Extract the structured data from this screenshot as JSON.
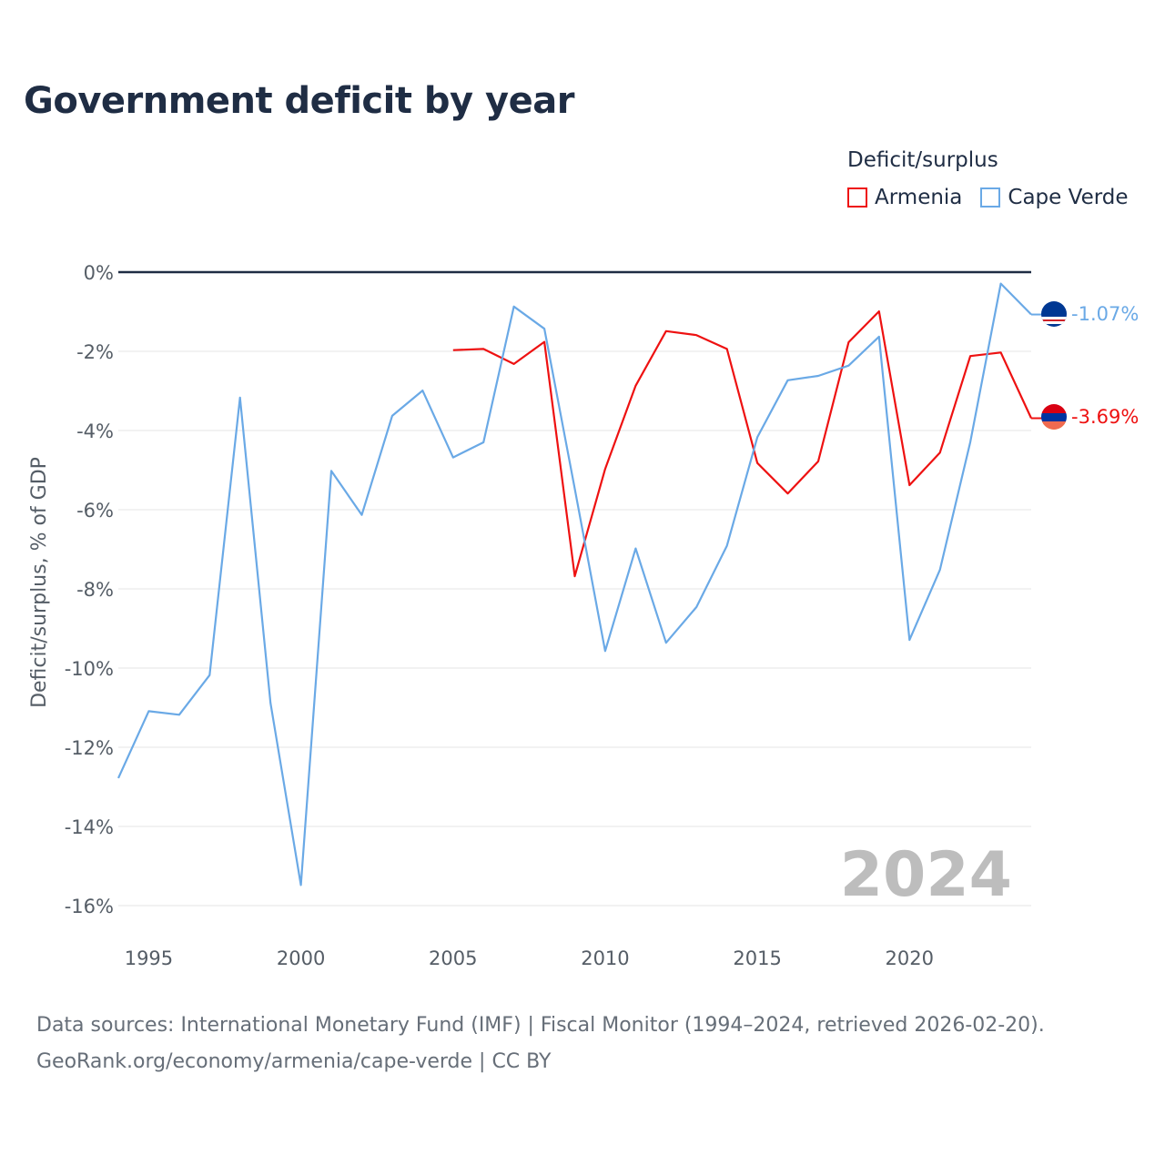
{
  "title": "Government deficit by year",
  "legend_title": "Deficit/surplus",
  "footer": {
    "line1": "Data sources: International Monetary Fund (IMF) | Fiscal Monitor (1994–2024, retrieved 2026-02-20).",
    "line2": "GeoRank.org/economy/armenia/cape-verde | CC BY"
  },
  "colors": {
    "armenia": "#ee1111",
    "cape_verde": "#6aa9e6",
    "zero_line": "#1f2d44",
    "grid": "#e6e6e6"
  },
  "chart_data": {
    "type": "line",
    "title": "Government deficit by year",
    "xlabel": "",
    "ylabel": "Deficit/surplus, % of GDP",
    "xlim": [
      1994,
      2024
    ],
    "ylim": [
      -16,
      0
    ],
    "x_ticks": [
      1995,
      2000,
      2005,
      2010,
      2015,
      2020
    ],
    "y_ticks": [
      0,
      -2,
      -4,
      -6,
      -8,
      -10,
      -12,
      -14,
      -16
    ],
    "y_tick_labels": [
      "0%",
      "-2%",
      "-4%",
      "-6%",
      "-8%",
      "-10%",
      "-12%",
      "-14%",
      "-16%"
    ],
    "watermark": "2024",
    "series": [
      {
        "name": "Armenia",
        "color": "#ee1111",
        "end_label": "-3.69%",
        "points": [
          [
            2005,
            -1.97
          ],
          [
            2006,
            -1.94
          ],
          [
            2007,
            -2.32
          ],
          [
            2008,
            -1.76
          ],
          [
            2009,
            -7.68
          ],
          [
            2010,
            -4.97
          ],
          [
            2011,
            -2.87
          ],
          [
            2012,
            -1.49
          ],
          [
            2013,
            -1.59
          ],
          [
            2014,
            -1.94
          ],
          [
            2015,
            -4.82
          ],
          [
            2016,
            -5.59
          ],
          [
            2017,
            -4.78
          ],
          [
            2018,
            -1.77
          ],
          [
            2019,
            -0.99
          ],
          [
            2020,
            -5.38
          ],
          [
            2021,
            -4.56
          ],
          [
            2022,
            -2.12
          ],
          [
            2023,
            -2.03
          ],
          [
            2024,
            -3.69
          ]
        ]
      },
      {
        "name": "Cape Verde",
        "color": "#6aa9e6",
        "end_label": "-1.07%",
        "points": [
          [
            1994,
            -12.78
          ],
          [
            1995,
            -11.09
          ],
          [
            1996,
            -11.18
          ],
          [
            1997,
            -10.18
          ],
          [
            1998,
            -3.17
          ],
          [
            1999,
            -10.88
          ],
          [
            2000,
            -15.48
          ],
          [
            2001,
            -5.02
          ],
          [
            2002,
            -6.13
          ],
          [
            2003,
            -3.63
          ],
          [
            2004,
            -2.99
          ],
          [
            2005,
            -4.68
          ],
          [
            2006,
            -4.3
          ],
          [
            2007,
            -0.87
          ],
          [
            2008,
            -1.43
          ],
          [
            2009,
            -5.47
          ],
          [
            2010,
            -9.57
          ],
          [
            2011,
            -6.98
          ],
          [
            2012,
            -9.36
          ],
          [
            2013,
            -8.46
          ],
          [
            2014,
            -6.91
          ],
          [
            2015,
            -4.17
          ],
          [
            2016,
            -2.73
          ],
          [
            2017,
            -2.62
          ],
          [
            2018,
            -2.36
          ],
          [
            2019,
            -1.63
          ],
          [
            2020,
            -9.29
          ],
          [
            2021,
            -7.52
          ],
          [
            2022,
            -4.29
          ],
          [
            2023,
            -0.29
          ],
          [
            2024,
            -1.07
          ]
        ]
      }
    ]
  }
}
